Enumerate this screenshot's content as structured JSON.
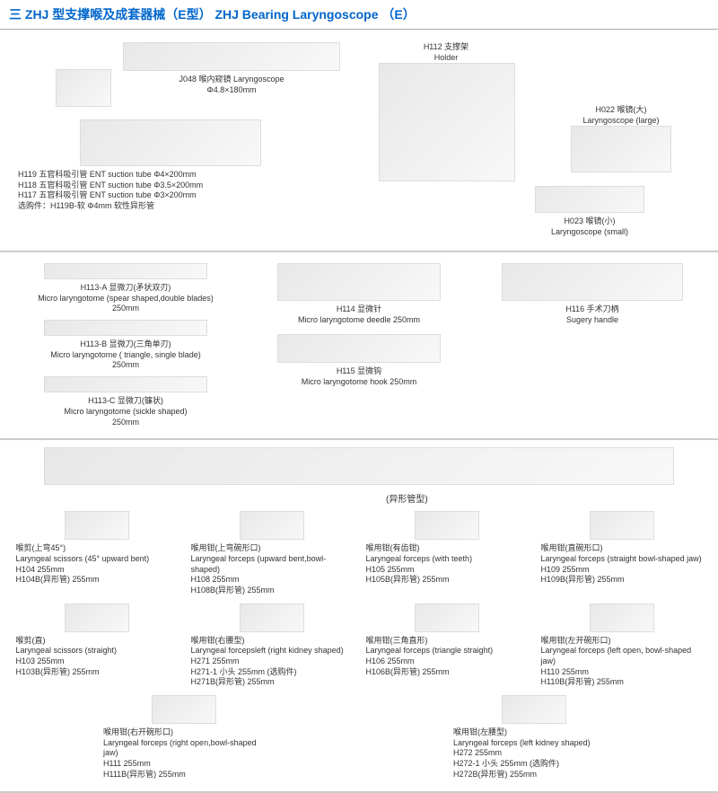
{
  "title": "三 ZHJ 型支撑喉及成套器械（E型） ZHJ Bearing Laryngoscope （E）",
  "section1": {
    "j048": {
      "label": "J048 喉内窥镜 Laryngoscope",
      "spec": "Φ4.8×180mm"
    },
    "h112": {
      "label": "H112 支撑架",
      "en": "Holder"
    },
    "h022": {
      "label": "H022 喉镜(大)",
      "en": "Laryngoscope (large)"
    },
    "h023": {
      "label": "H023 喉镜(小)",
      "en": "Laryngoscope (small)"
    },
    "suction": {
      "h119": "H119 五官科吸引管 ENT suction tube  Φ4×200mm",
      "h118": "H118 五官科吸引管 ENT suction tube  Φ3.5×200mm",
      "h117": "H117 五官科吸引管 ENT suction tube  Φ3×200mm",
      "opt": "选购件：H119B-软 Φ4mm 软性异形管"
    }
  },
  "section2": {
    "h113a": {
      "label": "H113-A 显微刀(矛状双刃)",
      "en": "Micro laryngotome (spear shaped,double blades)",
      "spec": "250mm"
    },
    "h113b": {
      "label": "H113-B 显微刀(三角单刃)",
      "en": "Micro laryngotome ( triangle, single blade)",
      "spec": "250mm"
    },
    "h113c": {
      "label": "H113-C 显微刀(镰状)",
      "en": "Micro laryngotome (sickle shaped)",
      "spec": "250mm"
    },
    "h114": {
      "label": "H114 显微针",
      "en": "Micro laryngotome deedle 250mm"
    },
    "h115": {
      "label": "H115 显微钩",
      "en": "Micro laryngotome hook 250mm"
    },
    "h116": {
      "label": "H116 手术刀柄",
      "en": "Sugery handle"
    }
  },
  "section3": {
    "abnormal": "(异形管型)",
    "items": [
      {
        "cn": "喉剪(上弯45°)",
        "en": "Laryngeal scissors (45° upward bent)",
        "r1": "H104         255mm",
        "r2": "H104B(异形管) 255mm"
      },
      {
        "cn": "喉用钳(上弯碗形口)",
        "en": "Laryngeal forceps (upward bent,bowl-shaped)",
        "r1": "H108         255mm",
        "r2": "H108B(异形管) 255mm"
      },
      {
        "cn": "喉用钳(有齿钳)",
        "en": "Laryngeal forceps (with teeth)",
        "r1": "H105         255mm",
        "r2": "H105B(异形管) 255mm"
      },
      {
        "cn": "喉用钳(直碗形口)",
        "en": "Laryngeal forceps (straight bowl-shaped jaw)",
        "r1": "H109         255mm",
        "r2": "H109B(异形管) 255mm"
      },
      {
        "cn": "喉剪(直)",
        "en": "Laryngeal scissors (straight)",
        "r1": "H103         255mm",
        "r2": "H103B(异形管) 255mm"
      },
      {
        "cn": "喉用钳(右腰型)",
        "en": "Laryngeal forcepsleft (right kidney shaped)",
        "r1": "H271         255mm",
        "r2": "H271-1 小头 255mm (选购件)",
        "r3": "H271B(异形管) 255mm"
      },
      {
        "cn": "喉用钳(三角直形)",
        "en": "Laryngeal forceps (triangle straight)",
        "r1": "H106         255mm",
        "r2": "H106B(异形管) 255mm"
      },
      {
        "cn": "喉用钳(左开碗形口)",
        "en": "Laryngeal forceps (left open, bowl-shaped jaw)",
        "r1": "H110         255mm",
        "r2": "H110B(异形管) 255mm"
      },
      {
        "cn": "喉用钳(右开碗形口)",
        "en": "Laryngeal forceps (right open,bowl-shaped jaw)",
        "r1": "H111         255mm",
        "r2": "H111B(异形管) 255mm"
      },
      {
        "cn": "喉用钳(左腰型)",
        "en": "Laryngeal forceps (left kidney shaped)",
        "r1": "H272         255mm",
        "r2": "H272-1 小头 255mm (选购件)",
        "r3": "H272B(异形管) 255mm"
      }
    ]
  }
}
